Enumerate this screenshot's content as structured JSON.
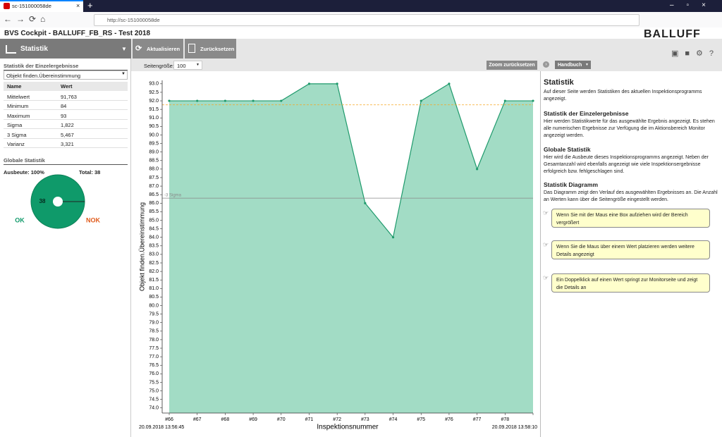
{
  "browser": {
    "tab_title": "sc-151000058de",
    "url": "http://sc-151000058de"
  },
  "header": {
    "title": "BVS Cockpit  - BALLUFF_FB_RS  - Test 2018",
    "logo": "BALLUFF"
  },
  "toolbar": {
    "section": "Statistik",
    "buttons": [
      "Aktualisieren",
      "Zurücksetzen"
    ]
  },
  "stats": {
    "title": "Statistik der Einzelergebnisse",
    "selected": "Objekt finden.Übereinstimmung",
    "columns": [
      "Name",
      "Wert"
    ],
    "rows": [
      [
        "Mittelwert",
        "91,763"
      ],
      [
        "Minimum",
        "84"
      ],
      [
        "Maximum",
        "93"
      ],
      [
        "Sigma",
        "1,822"
      ],
      [
        "3 Sigma",
        "5,467"
      ],
      [
        "Varianz",
        "3,321"
      ]
    ]
  },
  "global": {
    "title": "Globale Statistik",
    "yield": "Ausbeute: 100%",
    "total": "Total: 38",
    "ok_label": "OK",
    "nok_label": "NOK",
    "pie": {
      "values": [
        38
      ],
      "color": "#0f9a6a"
    }
  },
  "chart_controls": {
    "page_size_label": "Seitengröße:",
    "page_size": "100",
    "zoom_reset": "Zoom zurücksetzen"
  },
  "handbook": {
    "button": "Handbuch",
    "sections": [
      {
        "heading": "Statistik",
        "text": "Auf dieser Seite werden Statistiken des aktuellen Inspektionsprogramms angezeigt."
      },
      {
        "heading": "Statistik der Einzelergebnisse",
        "text": "Hier werden Statistikwerte für das ausgewählte Ergebnis angezeigt. Es stehen alle numerischen Ergebnisse zur Verfügung die im Aktionsbereich Monitor angezeigt werden."
      },
      {
        "heading": "Globale Statistik",
        "text": "Hier wird die Ausbeute dieses Inspektionsprogramms angezeigt. Neben der Gesamtanzahl wird ebenfalls angezeigt wie viele Inspektionsergebnisse erfolgreich bzw. fehlgeschlagen sind."
      },
      {
        "heading": "Statistik Diagramm",
        "text": "Das Diagramm zeigt den Verlauf des ausgewählten Ergebnisses an. Die Anzahl an Werten kann über die Seitengröße eingestellt werden."
      }
    ],
    "hints": [
      "Wenn Sie mit der Maus eine Box aufziehen wird der Bereich vergrößert",
      "Wenn Sie die Maus über einem Wert platzieren werden weitere Details angezeigt",
      "Ein Doppelklick auf einen Wert springt zur Monitorseite und zeigt die Details an"
    ]
  },
  "chart_data": {
    "type": "area",
    "x_label": "Inspektionsnummer",
    "y_label": "Objekt finden.Übereinstimmung",
    "start_label": "20.09.2018 13:56:45",
    "end_label": "20.09.2018 13:58:10",
    "categories": [
      "#66",
      "#67",
      "#68",
      "#69",
      "#70",
      "#71",
      "#72",
      "#73",
      "#74",
      "#75",
      "#76",
      "#77",
      "#78",
      null
    ],
    "values": [
      92,
      92,
      92,
      92,
      92,
      93,
      93,
      86,
      84,
      92,
      93,
      88,
      92,
      92
    ],
    "color": "#1f9a6c",
    "fill_color": "#a2dcc5",
    "reference_lines": [
      {
        "value": 91.763,
        "color": "#f5a623",
        "dashed": true
      },
      {
        "value": 86.296,
        "label": "-3 Sigma",
        "color": "#888888",
        "dashed": false
      }
    ],
    "ylim": [
      73.7,
      93.2
    ],
    "yticks": [
      {
        "value": 74,
        "label": "74.0"
      },
      74.5,
      {
        "value": 75,
        "label": "75.0"
      },
      75.5,
      {
        "value": 76,
        "label": "76.0"
      },
      76.5,
      {
        "value": 77,
        "label": "77.0"
      },
      77.5,
      {
        "value": 78,
        "label": "78.0"
      },
      78.5,
      {
        "value": 79,
        "label": "79.0"
      },
      79.5,
      {
        "value": 80,
        "label": "80.0"
      },
      80.5,
      {
        "value": 81,
        "label": "81.0"
      },
      81.5,
      {
        "value": 82,
        "label": "82.0"
      },
      82.5,
      {
        "value": 83,
        "label": "83.0"
      },
      83.5,
      {
        "value": 84,
        "label": "84.0"
      },
      84.5,
      {
        "value": 85,
        "label": "85.0"
      },
      85.5,
      {
        "value": 86,
        "label": "86.0"
      },
      86.5,
      {
        "value": 87,
        "label": "87.0"
      },
      87.5,
      {
        "value": 88,
        "label": "88.0"
      },
      88.5,
      {
        "value": 89,
        "label": "89.0"
      },
      89.5,
      {
        "value": 90,
        "label": "90.0"
      },
      90.5,
      {
        "value": 91,
        "label": "91.0"
      },
      91.5,
      {
        "value": 92,
        "label": "92.0"
      },
      92.5,
      {
        "value": 93,
        "label": "93.0"
      }
    ],
    "grid": false
  }
}
